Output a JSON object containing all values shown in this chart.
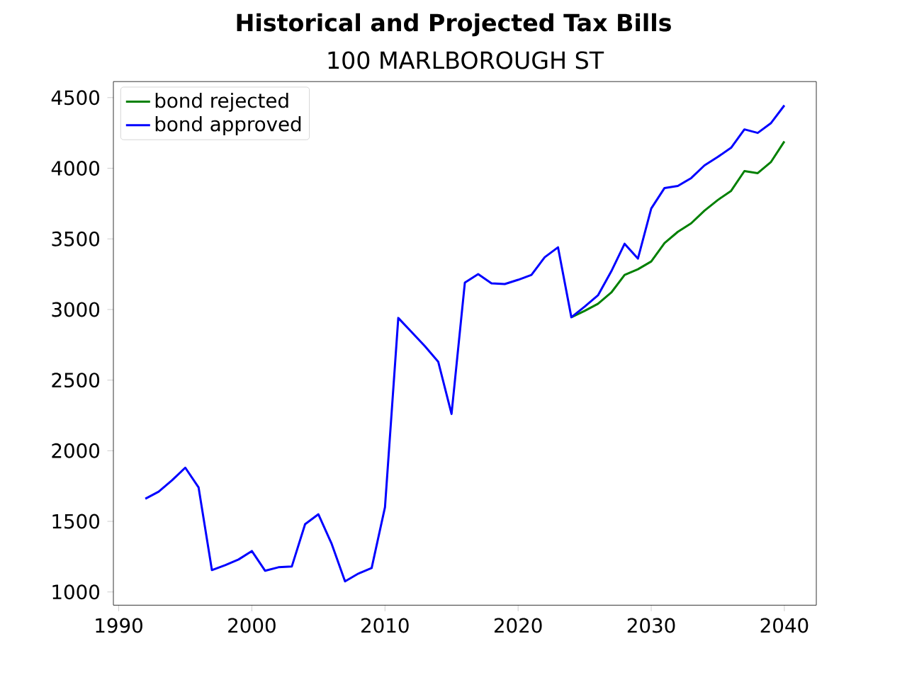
{
  "chart_data": {
    "type": "line",
    "title": "Historical and Projected Tax Bills",
    "subtitle": "100 MARLBOROUGH ST",
    "x": [
      1992,
      1993,
      1994,
      1995,
      1996,
      1997,
      1998,
      1999,
      2000,
      2001,
      2002,
      2003,
      2004,
      2005,
      2006,
      2007,
      2008,
      2009,
      2010,
      2011,
      2012,
      2013,
      2014,
      2015,
      2016,
      2017,
      2018,
      2019,
      2020,
      2021,
      2022,
      2023,
      2024,
      2025,
      2026,
      2027,
      2028,
      2029,
      2030,
      2031,
      2032,
      2033,
      2034,
      2035,
      2036,
      2037,
      2038,
      2039,
      2040
    ],
    "series": [
      {
        "name": "bond rejected",
        "color": "#008000",
        "values": [
          null,
          null,
          null,
          null,
          null,
          null,
          null,
          null,
          null,
          null,
          null,
          null,
          null,
          null,
          null,
          null,
          null,
          null,
          null,
          null,
          null,
          null,
          null,
          null,
          null,
          null,
          null,
          null,
          null,
          null,
          null,
          null,
          2945,
          2990,
          3040,
          3120,
          3245,
          3285,
          3340,
          3470,
          3550,
          3610,
          3700,
          3775,
          3840,
          3980,
          3965,
          4045,
          4190
        ]
      },
      {
        "name": "bond approved",
        "color": "#0000ff",
        "values": [
          1660,
          1710,
          1790,
          1880,
          1740,
          1155,
          1190,
          1230,
          1290,
          1150,
          1175,
          1180,
          1480,
          1550,
          1340,
          1075,
          1130,
          1170,
          1600,
          2940,
          2840,
          2740,
          2630,
          2260,
          3190,
          3250,
          3185,
          3180,
          3210,
          3245,
          3370,
          3440,
          2945,
          3020,
          3100,
          3270,
          3465,
          3360,
          3715,
          3860,
          3875,
          3930,
          4020,
          4080,
          4145,
          4275,
          4250,
          4320,
          4445
        ]
      }
    ],
    "xlim": [
      1989.6,
      2042.4
    ],
    "ylim": [
      906.5,
      4613.5
    ],
    "xticks": [
      1990,
      2000,
      2010,
      2020,
      2030,
      2040
    ],
    "yticks": [
      1000,
      1500,
      2000,
      2500,
      3000,
      3500,
      4000,
      4500
    ],
    "legend": "top left",
    "grid": false,
    "marker": "none",
    "line_style": "solid"
  }
}
